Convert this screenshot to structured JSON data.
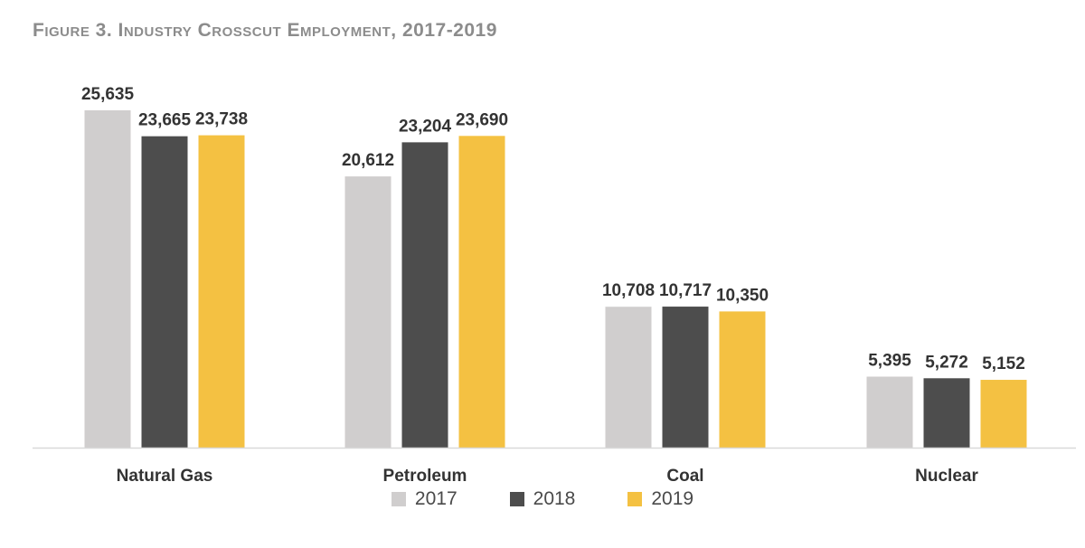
{
  "figure": {
    "title": "Figure 3. Industry Crosscut Employment, 2017-2019"
  },
  "chart_data": {
    "type": "bar",
    "title": "Figure 3. Industry Crosscut Employment, 2017-2019",
    "xlabel": "",
    "ylabel": "",
    "categories": [
      "Natural Gas",
      "Petroleum",
      "Coal",
      "Nuclear"
    ],
    "series": [
      {
        "name": "2017",
        "color": "#d0cece",
        "values": [
          25635,
          20612,
          10708,
          5395
        ]
      },
      {
        "name": "2018",
        "color": "#4d4d4d",
        "values": [
          23665,
          23204,
          10717,
          5272
        ]
      },
      {
        "name": "2019",
        "color": "#f4c142",
        "values": [
          23738,
          23690,
          10350,
          5152
        ]
      }
    ],
    "ylim": [
      0,
      30000
    ],
    "grid": false,
    "y_axis_visible": false,
    "data_labels": true,
    "legend_position": "bottom"
  }
}
